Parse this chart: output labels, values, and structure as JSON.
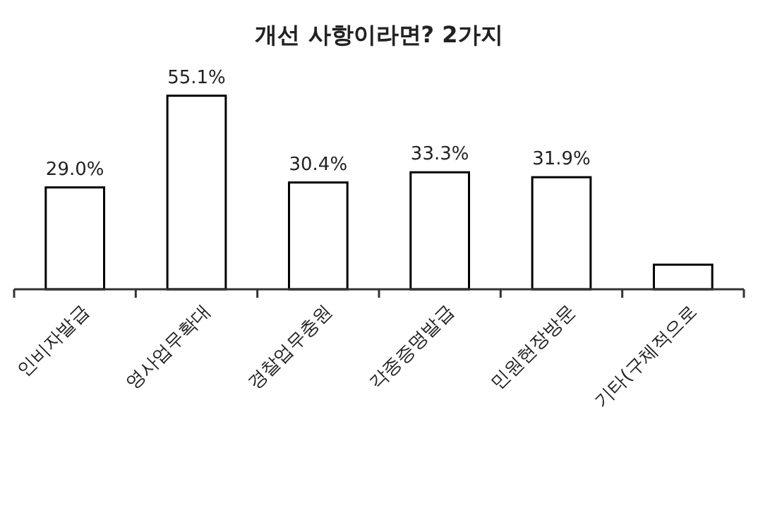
{
  "chart_data": {
    "type": "bar",
    "title": "개선 사항이라면? 2가지",
    "categories": [
      "인비자발급",
      "영사업무확대",
      "경찰업무충원",
      "각종증명발급",
      "민원현장방문",
      "기타(구체적으로"
    ],
    "values": [
      29.0,
      55.1,
      30.4,
      33.3,
      31.9,
      7
    ],
    "value_labels": [
      "29.0%",
      "55.1%",
      "30.4%",
      "33.3%",
      "31.9%",
      null
    ],
    "color": "#ffffff"
  }
}
